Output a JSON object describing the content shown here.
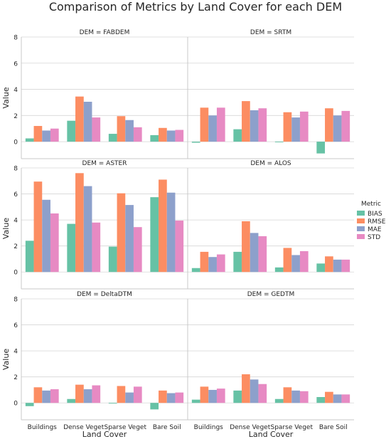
{
  "chart_data": {
    "type": "bar",
    "title": "Comparison of Metrics by Land Cover for each DEM",
    "xlabel": "Land Cover",
    "ylabel": "Value",
    "ylim": [
      -1.3,
      8
    ],
    "yticks": [
      0,
      2,
      4,
      6,
      8
    ],
    "grid": true,
    "legend_placement": "right",
    "legend_title": "Metric",
    "categories": [
      "Buildings",
      "Dense Veget",
      "Sparse Veget",
      "Bare Soil"
    ],
    "metrics": [
      {
        "name": "BIAS",
        "color": "#66c2a5"
      },
      {
        "name": "RMSE",
        "color": "#fc8d62"
      },
      {
        "name": "MAE",
        "color": "#8da0cb"
      },
      {
        "name": "STD",
        "color": "#e78ac3"
      }
    ],
    "panels": [
      {
        "title": "DEM = FABDEM",
        "values": {
          "BIAS": [
            0.25,
            1.6,
            0.6,
            0.5
          ],
          "RMSE": [
            1.2,
            3.45,
            1.95,
            1.05
          ],
          "MAE": [
            0.85,
            3.05,
            1.65,
            0.85
          ],
          "STD": [
            1.0,
            1.85,
            1.1,
            0.9
          ]
        }
      },
      {
        "title": "DEM = SRTM",
        "values": {
          "BIAS": [
            -0.08,
            0.95,
            -0.05,
            -0.9
          ],
          "RMSE": [
            2.6,
            3.1,
            2.25,
            2.55
          ],
          "MAE": [
            2.0,
            2.4,
            1.85,
            2.0
          ],
          "STD": [
            2.6,
            2.55,
            2.3,
            2.35
          ]
        }
      },
      {
        "title": "DEM = ASTER",
        "values": {
          "BIAS": [
            2.4,
            3.7,
            1.95,
            5.75
          ],
          "RMSE": [
            6.95,
            7.6,
            6.05,
            7.1
          ],
          "MAE": [
            5.55,
            6.6,
            5.15,
            6.1
          ],
          "STD": [
            4.5,
            3.8,
            3.45,
            3.95
          ]
        }
      },
      {
        "title": "DEM = ALOS",
        "values": {
          "BIAS": [
            0.3,
            1.55,
            0.35,
            0.65
          ],
          "RMSE": [
            1.55,
            3.9,
            1.85,
            1.2
          ],
          "MAE": [
            1.15,
            3.0,
            1.3,
            0.95
          ],
          "STD": [
            1.35,
            2.75,
            1.6,
            0.95
          ]
        }
      },
      {
        "title": "DEM = DeltaDTM",
        "values": {
          "BIAS": [
            -0.25,
            0.3,
            -0.05,
            -0.5
          ],
          "RMSE": [
            1.2,
            1.4,
            1.3,
            0.95
          ],
          "MAE": [
            0.95,
            1.05,
            0.8,
            0.75
          ],
          "STD": [
            1.05,
            1.35,
            1.25,
            0.8
          ]
        }
      },
      {
        "title": "DEM = GEDTM",
        "values": {
          "BIAS": [
            0.25,
            0.95,
            0.3,
            0.45
          ],
          "RMSE": [
            1.25,
            2.2,
            1.2,
            0.85
          ],
          "MAE": [
            1.0,
            1.8,
            0.95,
            0.65
          ],
          "STD": [
            1.1,
            1.45,
            0.9,
            0.65
          ]
        }
      }
    ]
  }
}
